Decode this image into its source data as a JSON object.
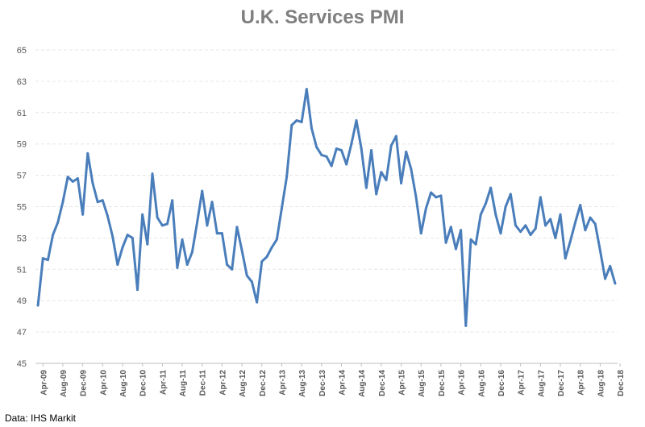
{
  "chart_data": {
    "type": "line",
    "title": "U.K. Services PMI",
    "xlabel": "",
    "ylabel": "",
    "ylim": [
      45,
      65
    ],
    "yticks": [
      45,
      47,
      49,
      51,
      53,
      55,
      57,
      59,
      61,
      63,
      65
    ],
    "xtick_labels": [
      "Apr-09",
      "Aug-09",
      "Dec-09",
      "Apr-10",
      "Aug-10",
      "Dec-10",
      "Apr-11",
      "Aug-11",
      "Dec-11",
      "Apr-12",
      "Aug-12",
      "Dec-12",
      "Apr-13",
      "Aug-13",
      "Dec-13",
      "Apr-14",
      "Aug-14",
      "Dec-14",
      "Apr-15",
      "Aug-15",
      "Dec-15",
      "Apr-16",
      "Aug-16",
      "Dec-16",
      "Apr-17",
      "Aug-17",
      "Dec-17",
      "Apr-18",
      "Aug-18",
      "Dec-18"
    ],
    "x_start": "Mar-09",
    "grid": true,
    "legend": "none",
    "series": [
      {
        "name": "U.K. Services PMI",
        "color": "#4a7ebb",
        "values": [
          48.7,
          51.7,
          51.6,
          53.2,
          54.0,
          55.3,
          56.9,
          56.6,
          56.8,
          54.5,
          58.4,
          56.5,
          55.3,
          55.4,
          54.4,
          53.1,
          51.3,
          52.4,
          53.2,
          53.0,
          49.7,
          54.5,
          52.6,
          57.1,
          54.3,
          53.8,
          53.9,
          55.4,
          51.1,
          52.9,
          51.3,
          52.1,
          54.0,
          56.0,
          53.8,
          55.3,
          53.3,
          53.3,
          51.3,
          51.0,
          53.7,
          52.2,
          50.6,
          50.2,
          48.9,
          51.5,
          51.8,
          52.4,
          52.9,
          54.9,
          56.9,
          60.2,
          60.5,
          60.4,
          62.5,
          60.0,
          58.8,
          58.3,
          58.2,
          57.6,
          58.7,
          58.6,
          57.7,
          59.0,
          60.5,
          58.7,
          56.2,
          58.6,
          55.8,
          57.2,
          56.7,
          58.9,
          59.5,
          56.5,
          58.5,
          57.4,
          55.6,
          53.3,
          54.9,
          55.9,
          55.6,
          55.7,
          52.7,
          53.7,
          52.3,
          53.5,
          47.4,
          52.9,
          52.6,
          54.5,
          55.2,
          56.2,
          54.5,
          53.3,
          55.0,
          55.8,
          53.8,
          53.4,
          53.8,
          53.2,
          53.6,
          55.6,
          53.8,
          54.2,
          53.0,
          54.5,
          51.7,
          52.8,
          54.0,
          55.1,
          53.5,
          54.3,
          53.9,
          52.2,
          50.4,
          51.2,
          50.1
        ]
      }
    ]
  },
  "footer": {
    "source": "Data: IHS Markit"
  }
}
